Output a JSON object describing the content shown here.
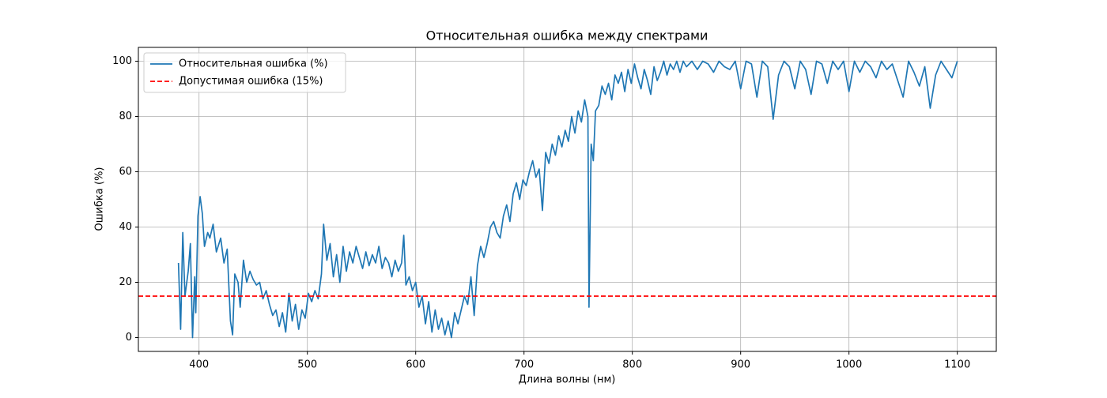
{
  "chart_data": {
    "type": "line",
    "title": "Относительная ошибка между спектрами",
    "x_label": "Длина волны (нм)",
    "y_label": "Ошибка (%)",
    "x": [
      381,
      383,
      385,
      387,
      390,
      392,
      394,
      396,
      397,
      399,
      401,
      403,
      405,
      408,
      410,
      413,
      416,
      420,
      423,
      426,
      429,
      431,
      433,
      436,
      438,
      441,
      444,
      447,
      450,
      453,
      456,
      459,
      462,
      465,
      468,
      471,
      474,
      477,
      480,
      483,
      486,
      489,
      492,
      495,
      498,
      501,
      504,
      507,
      510,
      513,
      515,
      518,
      521,
      524,
      527,
      530,
      533,
      536,
      539,
      542,
      545,
      548,
      551,
      554,
      557,
      560,
      563,
      566,
      569,
      572,
      575,
      578,
      581,
      584,
      587,
      589,
      591,
      594,
      597,
      600,
      603,
      606,
      609,
      612,
      615,
      618,
      621,
      624,
      627,
      630,
      633,
      636,
      639,
      642,
      645,
      648,
      651,
      654,
      657,
      660,
      663,
      666,
      669,
      672,
      675,
      678,
      681,
      684,
      687,
      690,
      693,
      696,
      699,
      702,
      705,
      708,
      711,
      714,
      717,
      720,
      723,
      726,
      729,
      732,
      735,
      738,
      741,
      744,
      747,
      750,
      753,
      756,
      759,
      760,
      762,
      764,
      766,
      769,
      772,
      775,
      778,
      781,
      784,
      787,
      790,
      793,
      796,
      799,
      802,
      805,
      808,
      811,
      814,
      817,
      820,
      823,
      826,
      829,
      832,
      835,
      838,
      841,
      844,
      847,
      850,
      855,
      860,
      865,
      870,
      875,
      880,
      885,
      890,
      895,
      900,
      905,
      910,
      915,
      920,
      925,
      930,
      935,
      940,
      945,
      950,
      955,
      960,
      965,
      970,
      975,
      980,
      985,
      990,
      995,
      1000,
      1005,
      1010,
      1015,
      1020,
      1025,
      1030,
      1035,
      1040,
      1045,
      1050,
      1055,
      1060,
      1065,
      1070,
      1075,
      1080,
      1085,
      1090,
      1095,
      1100
    ],
    "series": [
      {
        "name": "Относительная ошибка (%)",
        "color": "#1f77b4",
        "values": [
          27,
          3,
          38,
          15,
          24,
          34,
          0,
          22,
          9,
          44,
          51,
          45,
          33,
          38,
          36,
          41,
          31,
          36,
          27,
          32,
          6,
          1,
          23,
          20,
          11,
          28,
          20,
          24,
          21,
          19,
          20,
          14,
          17,
          12,
          8,
          10,
          4,
          9,
          2,
          16,
          6,
          12,
          3,
          10,
          7,
          16,
          13,
          17,
          14,
          23,
          41,
          28,
          34,
          22,
          30,
          20,
          33,
          24,
          31,
          27,
          33,
          29,
          25,
          31,
          26,
          30,
          27,
          33,
          25,
          29,
          27,
          22,
          28,
          24,
          27,
          37,
          19,
          22,
          17,
          20,
          11,
          15,
          5,
          13,
          2,
          10,
          3,
          7,
          1,
          6,
          0,
          9,
          5,
          10,
          15,
          12,
          22,
          8,
          26,
          33,
          29,
          34,
          40,
          42,
          38,
          36,
          44,
          48,
          42,
          52,
          56,
          50,
          57,
          55,
          60,
          64,
          58,
          61,
          46,
          67,
          63,
          70,
          66,
          73,
          69,
          75,
          71,
          80,
          74,
          82,
          78,
          86,
          80,
          11,
          70,
          64,
          82,
          84,
          91,
          88,
          92,
          86,
          95,
          92,
          96,
          89,
          97,
          92,
          99,
          94,
          90,
          97,
          93,
          88,
          98,
          93,
          96,
          100,
          95,
          99,
          97,
          100,
          96,
          100,
          98,
          100,
          97,
          100,
          99,
          96,
          100,
          98,
          97,
          100,
          90,
          100,
          99,
          87,
          100,
          98,
          79,
          95,
          100,
          98,
          90,
          100,
          97,
          88,
          100,
          99,
          92,
          100,
          97,
          100,
          89,
          100,
          96,
          100,
          98,
          94,
          100,
          97,
          99,
          93,
          87,
          100,
          96,
          91,
          98,
          83,
          95,
          100,
          97,
          94,
          100
        ]
      }
    ],
    "threshold": {
      "name": "Допустимая ошибка (15%)",
      "color": "#ff0000",
      "value": 15
    },
    "xlim": [
      344,
      1136
    ],
    "xticks": [
      400,
      500,
      600,
      700,
      800,
      900,
      1000,
      1100
    ],
    "ylim": [
      -5,
      105
    ],
    "yticks": [
      0,
      20,
      40,
      60,
      80,
      100
    ],
    "grid": true,
    "legend": "upper left"
  }
}
